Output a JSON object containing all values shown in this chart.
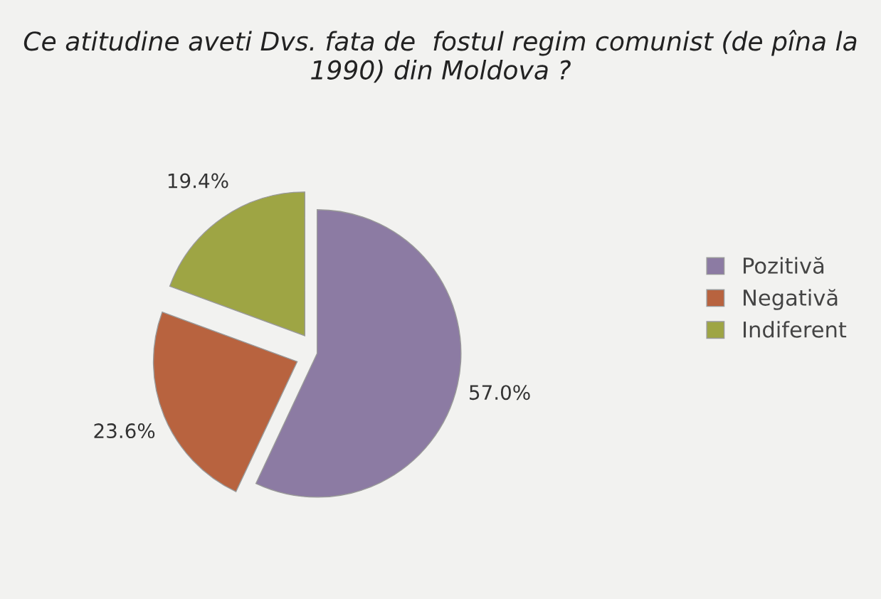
{
  "chart_data": {
    "type": "pie",
    "title": "Ce atitudine aveti Dvs. fata de  fostul regim comunist (de pîna la 1990) din Moldova ?",
    "categories": [
      "Pozitivă",
      "Negativă",
      "Indiferent"
    ],
    "values": [
      57.0,
      23.6,
      19.4
    ],
    "value_labels": [
      "57.0%",
      "23.6%",
      "19.4%"
    ],
    "colors": [
      "#8c7ba3",
      "#b8633f",
      "#9ea544"
    ],
    "legend": "right"
  }
}
